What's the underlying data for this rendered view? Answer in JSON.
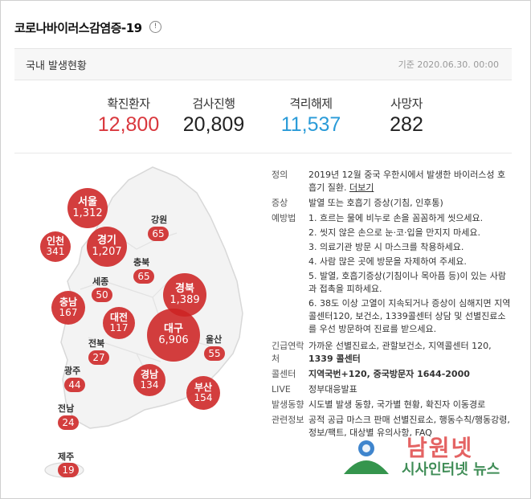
{
  "header": {
    "title": "코로나바이러스감염증-19",
    "info_icon": "info-icon"
  },
  "subbar": {
    "title": "국내 발생현황",
    "date": "기준 2020.06.30. 00:00"
  },
  "stats": [
    {
      "label": "확진환자",
      "value": "12,800",
      "color": "#d9373d"
    },
    {
      "label": "검사진행",
      "value": "20,809",
      "color": "#222222"
    },
    {
      "label": "격리해제",
      "value": "11,537",
      "color": "#2a9bd8"
    },
    {
      "label": "사망자",
      "value": "282",
      "color": "#222222"
    }
  ],
  "regions": [
    {
      "name": "서울",
      "count": "1,312"
    },
    {
      "name": "인천",
      "count": "341"
    },
    {
      "name": "경기",
      "count": "1,207"
    },
    {
      "name": "강원",
      "count": "65"
    },
    {
      "name": "충북",
      "count": "65"
    },
    {
      "name": "세종",
      "count": "50"
    },
    {
      "name": "충남",
      "count": "167"
    },
    {
      "name": "대전",
      "count": "117"
    },
    {
      "name": "경북",
      "count": "1,389"
    },
    {
      "name": "대구",
      "count": "6,906"
    },
    {
      "name": "전북",
      "count": "27"
    },
    {
      "name": "울산",
      "count": "55"
    },
    {
      "name": "광주",
      "count": "44"
    },
    {
      "name": "경남",
      "count": "134"
    },
    {
      "name": "부산",
      "count": "154"
    },
    {
      "name": "전남",
      "count": "24"
    },
    {
      "name": "제주",
      "count": "19"
    }
  ],
  "info": {
    "definition_label": "정의",
    "definition_text": "2019년 12월 중국 우한시에서 발생한 바이러스성 호흡기 질환.",
    "definition_link": "더보기",
    "symptom_label": "증상",
    "symptom_text": "발열 또는 호흡기 증상(기침, 인후통)",
    "prevention_label": "예방법",
    "prevention": [
      "1. 흐르는 물에 비누로 손을 꼼꼼하게 씻으세요.",
      "2. 씻지 않은 손으로 눈·코·입을 만지지 마세요.",
      "3. 의료기관 방문 시 마스크를 착용하세요.",
      "4. 사람 많은 곳에 방문을 자제하여 주세요.",
      "5. 발열, 호흡기증상(기침이나 목아픔 등)이 있는 사람과 접촉을 피하세요.",
      "6. 38도 이상 고열이 지속되거나 증상이 심해지면 지역콜센터120, 보건소, 1339콜센터 상담 및 선별진료소를 우선 방문하여 진료를 받으세요."
    ],
    "contact_label": "긴급연락처",
    "contact_text": "가까운 선별진료소, 관할보건소, 지역콜센터 120,",
    "contact_bold": "1339 콜센터",
    "callcenter_label": "콜센터",
    "callcenter_text": "지역국번+120, 중국방문자 1644-2000",
    "live_label": "LIVE",
    "live_text": "정부대응발표",
    "trend_label": "발생동향",
    "trend_text": "시도별 발생 동향, 국가별 현황, 확진자 이동경로",
    "related_label": "관련정보",
    "related_text": "공적 공급 마스크 판매 선별진료소, 행동수칙/행동강령, 정보/팩트, 대상별 유의사항, FAQ"
  },
  "watermark": {
    "title": "남원넷",
    "subtitle": "시사인터넷 뉴스"
  }
}
